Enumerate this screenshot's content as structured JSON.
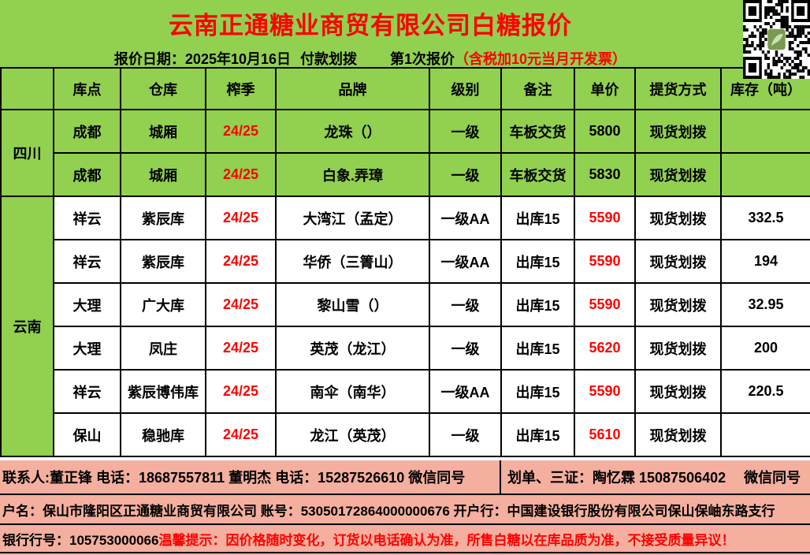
{
  "header": {
    "title": "云南正通糖业商贸有限公司白糖报价",
    "quote_date": "报价日期：2025年10月16日",
    "payment_method": "付款划拨",
    "quote_number": "第1次报价",
    "tax_note": "（含税加10元当月开发票）"
  },
  "icons": {
    "qr_code": "wechat-qr-code"
  },
  "colors": {
    "header_green": "#92D050",
    "footer_salmon": "#F4AF9F",
    "accent_red": "#FF0000",
    "sichuan_row_bg": "#92D050",
    "yunnan_row_bg": "#FFFFFF"
  },
  "table": {
    "columns": [
      "库点",
      "仓库",
      "榨季",
      "品牌",
      "级别",
      "备注",
      "单价",
      "提货方式",
      "库存（吨）"
    ],
    "regions": [
      {
        "name": "四川",
        "row_bg": "#92D050",
        "price_red": false,
        "rows": [
          {
            "depot": "成都",
            "warehouse": "城厢",
            "season": "24/25",
            "brand": "龙珠（）",
            "grade": "一级",
            "note": "车板交货",
            "price": "5800",
            "delivery": "现货划拨",
            "stock": ""
          },
          {
            "depot": "成都",
            "warehouse": "城厢",
            "season": "24/25",
            "brand": "白象.弄璋",
            "grade": "一级",
            "note": "车板交货",
            "price": "5830",
            "delivery": "现货划拨",
            "stock": ""
          }
        ]
      },
      {
        "name": "云南",
        "row_bg": "#FFFFFF",
        "price_red": true,
        "rows": [
          {
            "depot": "祥云",
            "warehouse": "紫辰库",
            "season": "24/25",
            "brand": "大湾江（孟定）",
            "grade": "一级AA",
            "note": "出库15",
            "price": "5590",
            "delivery": "现货划拨",
            "stock": "332.5"
          },
          {
            "depot": "祥云",
            "warehouse": "紫辰库",
            "season": "24/25",
            "brand": "华侨（三箐山）",
            "grade": "一级AA",
            "note": "出库15",
            "price": "5590",
            "delivery": "现货划拨",
            "stock": "194"
          },
          {
            "depot": "大理",
            "warehouse": "广大库",
            "season": "24/25",
            "brand": "黎山雪（）",
            "grade": "一级",
            "note": "出库15",
            "price": "5590",
            "delivery": "现货划拨",
            "stock": "32.95"
          },
          {
            "depot": "大理",
            "warehouse": "凤庄",
            "season": "24/25",
            "brand": "英茂（龙江）",
            "grade": "一级",
            "note": "出库15",
            "price": "5620",
            "delivery": "现货划拨",
            "stock": "200"
          },
          {
            "depot": "祥云",
            "warehouse": "紫辰博伟库",
            "season": "24/25",
            "brand": "南伞（南华）",
            "grade": "一级AA",
            "note": "出库15",
            "price": "5590",
            "delivery": "现货划拨",
            "stock": "220.5"
          },
          {
            "depot": "保山",
            "warehouse": "稳驰库",
            "season": "24/25",
            "brand": "龙江（英茂）",
            "grade": "一级",
            "note": "出库15",
            "price": "5610",
            "delivery": "现货划拨",
            "stock": ""
          }
        ]
      }
    ]
  },
  "footer": {
    "contact_left": "联系人:董正锋 电话：18687557811 董明杰 电话：15287526610 微信同号",
    "contact_right": "划单、三证：陶忆霖 15087506402　 微信同号",
    "account_line": "户名：保山市隆阳区正通糖业商贸有限公司 账号：53050172864000000676 开户行：中国建设银行股份有限公司保山保岫东路支行",
    "bank_number": "银行行号：105753000066",
    "warning": "温馨提示：因价格随时变化，订货以电话确认为准，所售白糖以在库品质为准，不接受质量异议！"
  }
}
